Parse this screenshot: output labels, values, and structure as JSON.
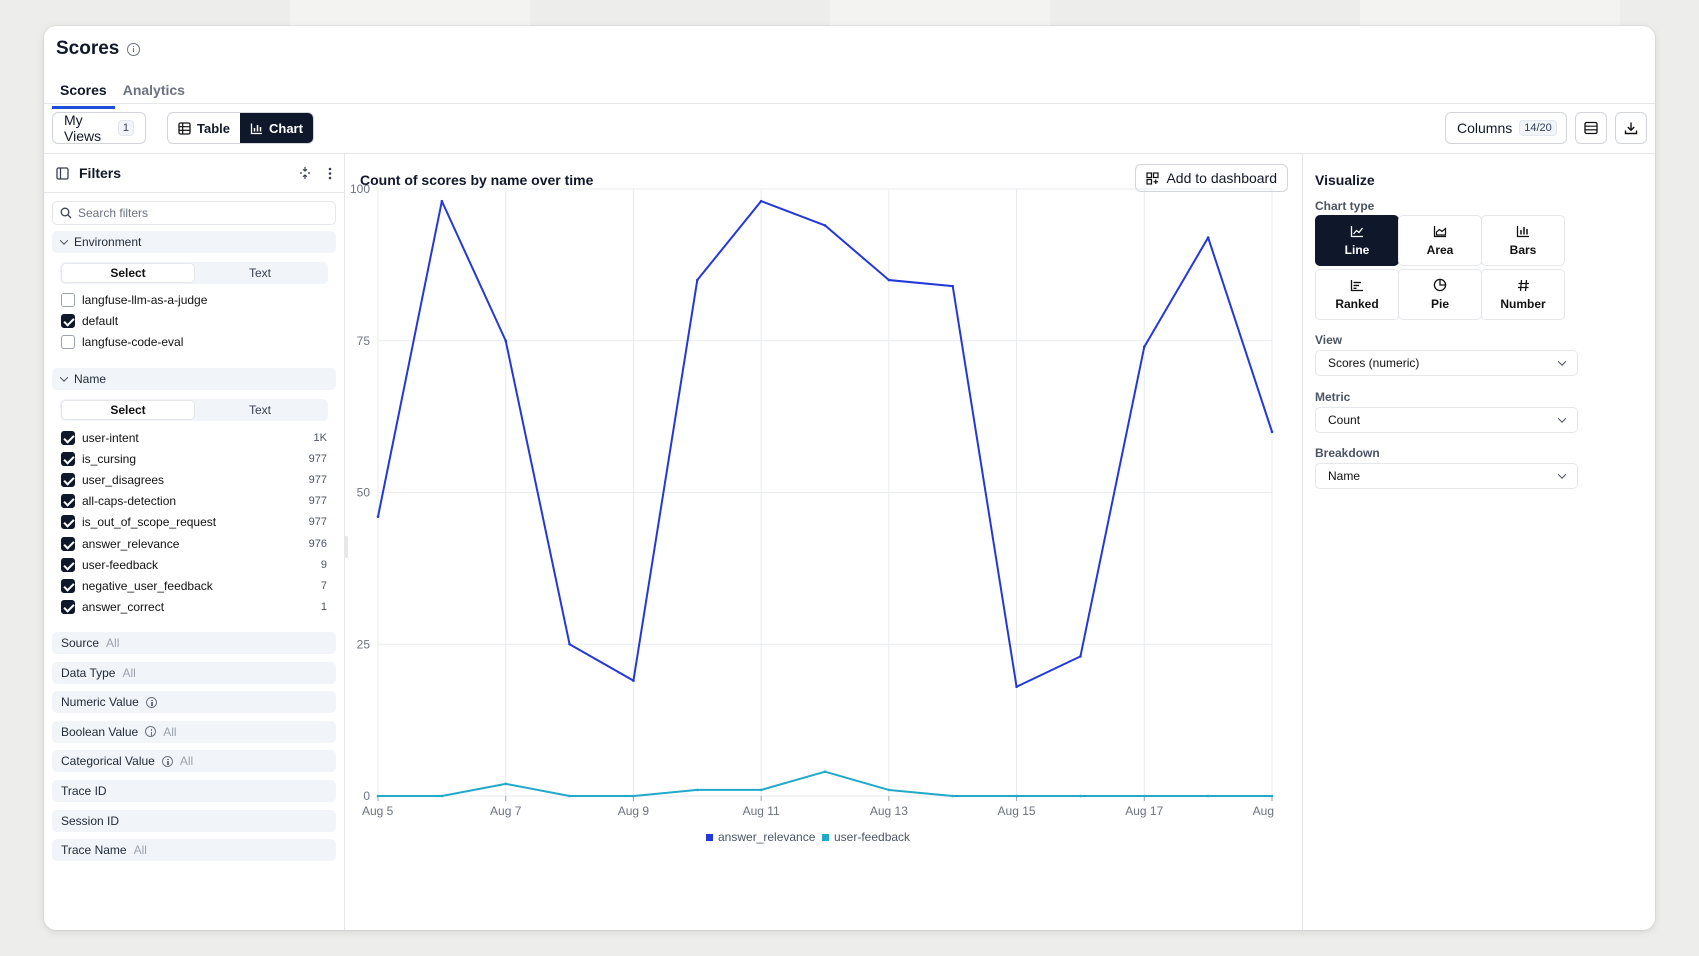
{
  "page": {
    "title": "Scores"
  },
  "tabs": [
    {
      "label": "Scores"
    },
    {
      "label": "Analytics"
    }
  ],
  "toolbar": {
    "my_views_label": "My Views",
    "my_views_count": "1",
    "table_label": "Table",
    "chart_label": "Chart",
    "columns_label": "Columns",
    "columns_count": "14/20"
  },
  "filters": {
    "title": "Filters",
    "search_placeholder": "Search filters",
    "environment": {
      "label": "Environment",
      "mode_select": "Select",
      "mode_text": "Text",
      "options": [
        {
          "label": "langfuse-llm-as-a-judge",
          "checked": false
        },
        {
          "label": "default",
          "checked": true
        },
        {
          "label": "langfuse-code-eval",
          "checked": false
        }
      ]
    },
    "name": {
      "label": "Name",
      "mode_select": "Select",
      "mode_text": "Text",
      "options": [
        {
          "label": "user-intent",
          "count": "1K",
          "checked": true
        },
        {
          "label": "is_cursing",
          "count": "977",
          "checked": true
        },
        {
          "label": "user_disagrees",
          "count": "977",
          "checked": true
        },
        {
          "label": "all-caps-detection",
          "count": "977",
          "checked": true
        },
        {
          "label": "is_out_of_scope_request",
          "count": "977",
          "checked": true
        },
        {
          "label": "answer_relevance",
          "count": "976",
          "checked": true
        },
        {
          "label": "user-feedback",
          "count": "9",
          "checked": true
        },
        {
          "label": "negative_user_feedback",
          "count": "7",
          "checked": true
        },
        {
          "label": "answer_correct",
          "count": "1",
          "checked": true
        }
      ]
    },
    "collapsed_groups": [
      {
        "label": "Source",
        "value": "All",
        "info": false
      },
      {
        "label": "Data Type",
        "value": "All",
        "info": false
      },
      {
        "label": "Numeric Value",
        "value": "",
        "info": true
      },
      {
        "label": "Boolean Value",
        "value": "All",
        "info": true
      },
      {
        "label": "Categorical Value",
        "value": "All",
        "info": true
      },
      {
        "label": "Trace ID",
        "value": "",
        "info": false
      },
      {
        "label": "Session ID",
        "value": "",
        "info": false
      },
      {
        "label": "Trace Name",
        "value": "All",
        "info": false
      }
    ]
  },
  "chart_panel": {
    "title": "Count of scores by name over time",
    "add_to_dashboard_label": "Add to dashboard"
  },
  "chart_data": {
    "type": "line",
    "title": "Count of scores by name over time",
    "x_ticks": [
      "Aug 5",
      "Aug 7",
      "Aug 9",
      "Aug 11",
      "Aug 13",
      "Aug 15",
      "Aug 17",
      "Aug"
    ],
    "x": [
      "Aug 5",
      "Aug 6",
      "Aug 7",
      "Aug 8",
      "Aug 9",
      "Aug 10",
      "Aug 11",
      "Aug 12",
      "Aug 13",
      "Aug 14",
      "Aug 15",
      "Aug 16",
      "Aug 17",
      "Aug 18",
      "Aug 19"
    ],
    "ylim": [
      0,
      100
    ],
    "y_ticks": [
      0,
      25,
      50,
      75,
      100
    ],
    "grid": true,
    "legend_position": "bottom",
    "series": [
      {
        "name": "answer_relevance",
        "color": "#2438d9",
        "values": [
          46,
          98,
          75,
          25,
          19,
          85,
          98,
          94,
          85,
          84,
          18,
          23,
          74,
          92,
          60
        ]
      },
      {
        "name": "user-feedback",
        "color": "#21a9c9",
        "values": [
          0,
          0,
          2,
          0,
          0,
          1,
          1,
          4,
          1,
          0,
          0,
          0,
          0,
          0,
          0
        ]
      }
    ]
  },
  "visualize": {
    "title": "Visualize",
    "chart_type_label": "Chart type",
    "chart_types": [
      {
        "label": "Line",
        "icon": "line-chart-icon",
        "active": true
      },
      {
        "label": "Area",
        "icon": "area-chart-icon",
        "active": false
      },
      {
        "label": "Bars",
        "icon": "bar-chart-icon",
        "active": false
      },
      {
        "label": "Ranked",
        "icon": "ranked-chart-icon",
        "active": false
      },
      {
        "label": "Pie",
        "icon": "pie-chart-icon",
        "active": false
      },
      {
        "label": "Number",
        "icon": "hash-icon",
        "active": false
      }
    ],
    "view_label": "View",
    "view_value": "Scores (numeric)",
    "metric_label": "Metric",
    "metric_value": "Count",
    "breakdown_label": "Breakdown",
    "breakdown_value": "Name"
  }
}
